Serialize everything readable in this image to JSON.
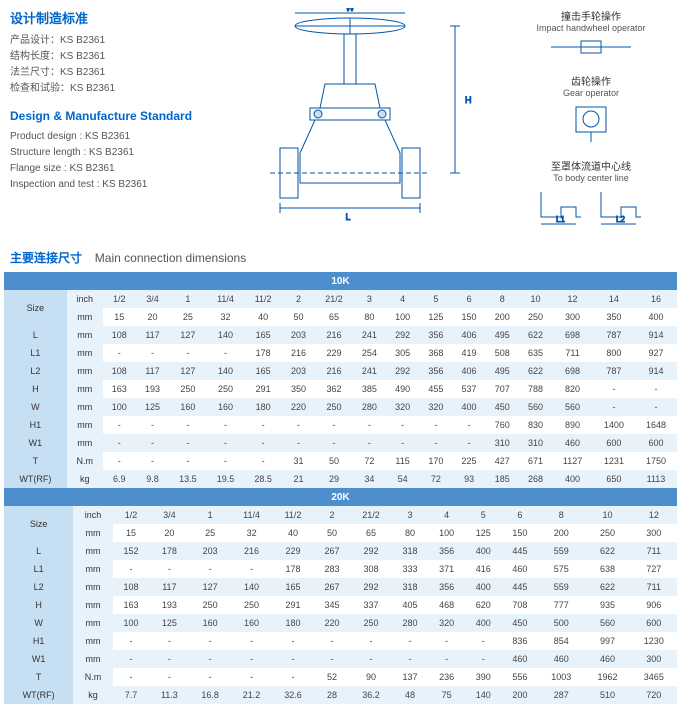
{
  "standards": {
    "heading_cn": "设计制造标准",
    "heading_en": "Design & Manufacture Standard",
    "lines_cn": [
      "产品设计：KS B2361",
      "结构长度：KS B2361",
      "法兰尺寸：KS B2361",
      "检查和试验：KS B2361"
    ],
    "lines_en": [
      "Product design : KS B2361",
      "Structure length : KS B2361",
      "Flange size : KS B2361",
      "Inspection and test : KS B2361"
    ]
  },
  "diagram": {
    "dim_w": "W",
    "dim_h": "H",
    "dim_l": "L",
    "dim_l1": "L1",
    "dim_l2": "L2",
    "impact_cn": "撞击手轮操作",
    "impact_en": "Impact handwheel operator",
    "gear_cn": "齿轮操作",
    "gear_en": "Gear operator",
    "body_cn": "至罩体流道中心线",
    "body_en": "To body center line"
  },
  "section": {
    "cn": "主要连接尺寸",
    "en": "Main connection  dimensions"
  },
  "tables": [
    {
      "title": "10K",
      "size_label": "Size",
      "inch_label": "inch",
      "mm_label": "mm",
      "inch_row": [
        "1/2",
        "3/4",
        "1",
        "11/4",
        "11/2",
        "2",
        "21/2",
        "3",
        "4",
        "5",
        "6",
        "8",
        "10",
        "12",
        "14",
        "16"
      ],
      "mm_row": [
        "15",
        "20",
        "25",
        "32",
        "40",
        "50",
        "65",
        "80",
        "100",
        "125",
        "150",
        "200",
        "250",
        "300",
        "350",
        "400"
      ],
      "rows": [
        {
          "label": "L",
          "unit": "mm",
          "vals": [
            "108",
            "117",
            "127",
            "140",
            "165",
            "203",
            "216",
            "241",
            "292",
            "356",
            "406",
            "495",
            "622",
            "698",
            "787",
            "914"
          ]
        },
        {
          "label": "L1",
          "unit": "mm",
          "vals": [
            "-",
            "-",
            "-",
            "-",
            "178",
            "216",
            "229",
            "254",
            "305",
            "368",
            "419",
            "508",
            "635",
            "711",
            "800",
            "927"
          ]
        },
        {
          "label": "L2",
          "unit": "mm",
          "vals": [
            "108",
            "117",
            "127",
            "140",
            "165",
            "203",
            "216",
            "241",
            "292",
            "356",
            "406",
            "495",
            "622",
            "698",
            "787",
            "914"
          ]
        },
        {
          "label": "H",
          "unit": "mm",
          "vals": [
            "163",
            "193",
            "250",
            "250",
            "291",
            "350",
            "362",
            "385",
            "490",
            "455",
            "537",
            "707",
            "788",
            "820",
            "-",
            "-"
          ]
        },
        {
          "label": "W",
          "unit": "mm",
          "vals": [
            "100",
            "125",
            "160",
            "160",
            "180",
            "220",
            "250",
            "280",
            "320",
            "320",
            "400",
            "450",
            "560",
            "560",
            "-",
            "-"
          ]
        },
        {
          "label": "H1",
          "unit": "mm",
          "vals": [
            "-",
            "-",
            "-",
            "-",
            "-",
            "-",
            "-",
            "-",
            "-",
            "-",
            "-",
            "760",
            "830",
            "890",
            "1400",
            "1648"
          ]
        },
        {
          "label": "W1",
          "unit": "mm",
          "vals": [
            "-",
            "-",
            "-",
            "-",
            "-",
            "-",
            "-",
            "-",
            "-",
            "-",
            "-",
            "310",
            "310",
            "460",
            "600",
            "600"
          ]
        },
        {
          "label": "T",
          "unit": "N.m",
          "vals": [
            "-",
            "-",
            "-",
            "-",
            "-",
            "31",
            "50",
            "72",
            "115",
            "170",
            "225",
            "427",
            "671",
            "1127",
            "1231",
            "1750"
          ]
        },
        {
          "label": "WT(RF)",
          "unit": "kg",
          "vals": [
            "6.9",
            "9.8",
            "13.5",
            "19.5",
            "28.5",
            "21",
            "29",
            "34",
            "54",
            "72",
            "93",
            "185",
            "268",
            "400",
            "650",
            "1113"
          ]
        }
      ]
    },
    {
      "title": "20K",
      "size_label": "Size",
      "inch_label": "inch",
      "mm_label": "mm",
      "inch_row": [
        "1/2",
        "3/4",
        "1",
        "11/4",
        "11/2",
        "2",
        "21/2",
        "3",
        "4",
        "5",
        "6",
        "8",
        "10",
        "12"
      ],
      "mm_row": [
        "15",
        "20",
        "25",
        "32",
        "40",
        "50",
        "65",
        "80",
        "100",
        "125",
        "150",
        "200",
        "250",
        "300"
      ],
      "rows": [
        {
          "label": "L",
          "unit": "mm",
          "vals": [
            "152",
            "178",
            "203",
            "216",
            "229",
            "267",
            "292",
            "318",
            "356",
            "400",
            "445",
            "559",
            "622",
            "711"
          ]
        },
        {
          "label": "L1",
          "unit": "mm",
          "vals": [
            "-",
            "-",
            "-",
            "-",
            "178",
            "283",
            "308",
            "333",
            "371",
            "416",
            "460",
            "575",
            "638",
            "727"
          ]
        },
        {
          "label": "L2",
          "unit": "mm",
          "vals": [
            "108",
            "117",
            "127",
            "140",
            "165",
            "267",
            "292",
            "318",
            "356",
            "400",
            "445",
            "559",
            "622",
            "711"
          ]
        },
        {
          "label": "H",
          "unit": "mm",
          "vals": [
            "163",
            "193",
            "250",
            "250",
            "291",
            "345",
            "337",
            "405",
            "468",
            "620",
            "708",
            "777",
            "935",
            "906"
          ]
        },
        {
          "label": "W",
          "unit": "mm",
          "vals": [
            "100",
            "125",
            "160",
            "160",
            "180",
            "220",
            "250",
            "280",
            "320",
            "400",
            "450",
            "500",
            "560",
            "600"
          ]
        },
        {
          "label": "H1",
          "unit": "mm",
          "vals": [
            "-",
            "-",
            "-",
            "-",
            "-",
            "-",
            "-",
            "-",
            "-",
            "-",
            "836",
            "854",
            "997",
            "1230"
          ]
        },
        {
          "label": "W1",
          "unit": "mm",
          "vals": [
            "-",
            "-",
            "-",
            "-",
            "-",
            "-",
            "-",
            "-",
            "-",
            "-",
            "460",
            "460",
            "460",
            "300"
          ]
        },
        {
          "label": "T",
          "unit": "N.m",
          "vals": [
            "-",
            "-",
            "-",
            "-",
            "-",
            "52",
            "90",
            "137",
            "236",
            "390",
            "556",
            "1003",
            "1962",
            "3465"
          ]
        },
        {
          "label": "WT(RF)",
          "unit": "kg",
          "vals": [
            "7.7",
            "11.3",
            "16.8",
            "21.2",
            "32.6",
            "28",
            "36.2",
            "48",
            "75",
            "140",
            "200",
            "287",
            "510",
            "720"
          ]
        }
      ]
    }
  ]
}
